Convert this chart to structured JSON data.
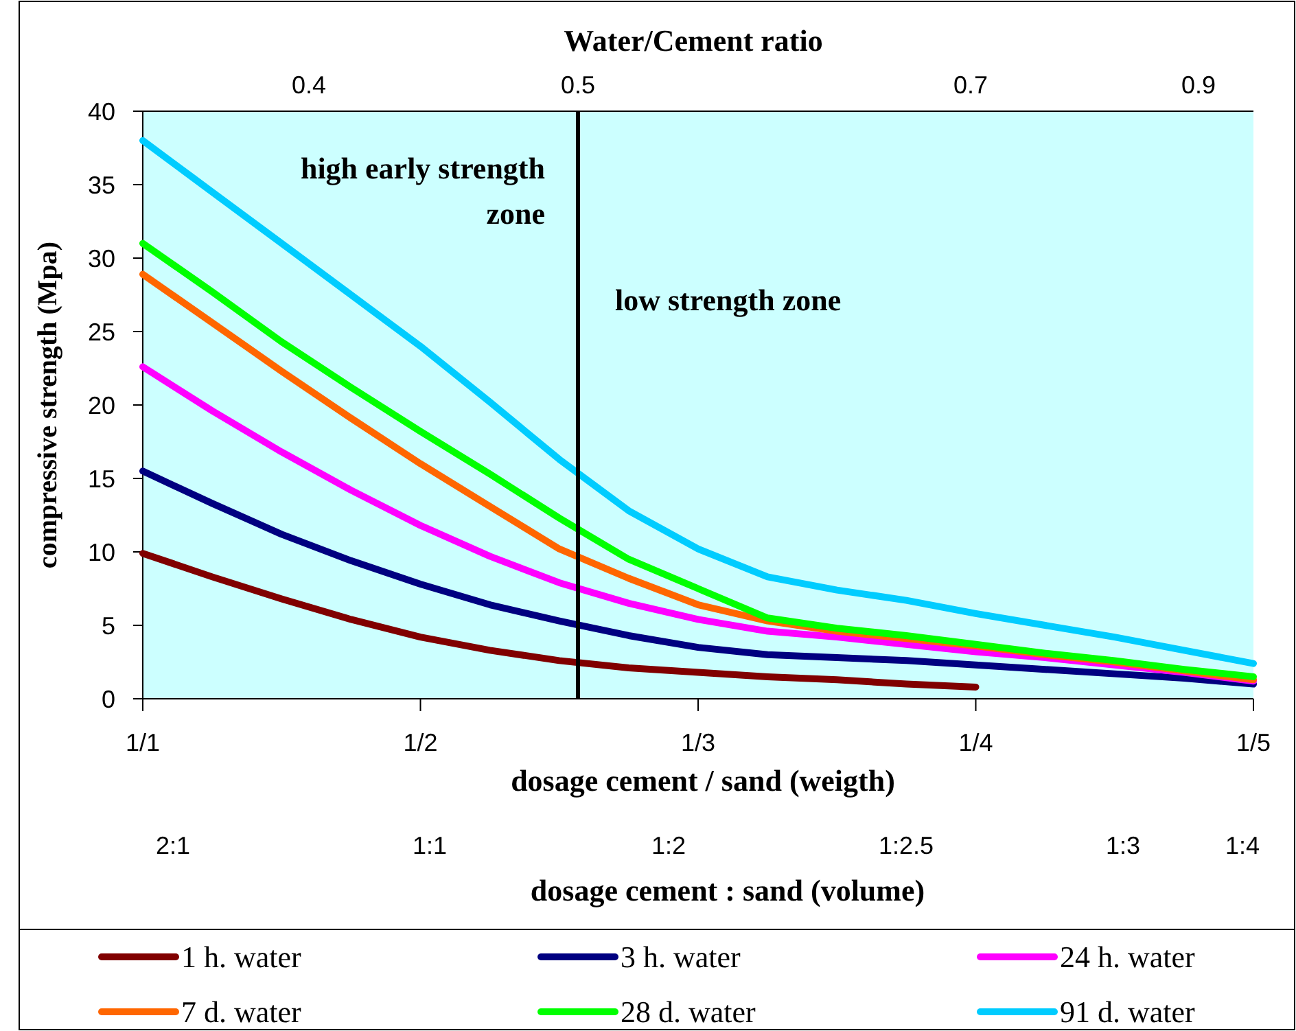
{
  "chart_data": {
    "type": "line",
    "xlabel": "dosage cement / sand (weigth)",
    "ylabel": "compressive strength (Mpa)",
    "x2label": "Water/Cement ratio",
    "categories": [
      "1/1",
      null,
      null,
      null,
      "1/2",
      null,
      null,
      null,
      "1/3",
      null,
      null,
      null,
      "1/4",
      null,
      null,
      null,
      "1/5"
    ],
    "series": [
      {
        "name": "1 h. water",
        "color": "#800000",
        "values": [
          9.9,
          8.3,
          6.8,
          5.4,
          4.2,
          3.3,
          2.6,
          2.1,
          1.8,
          1.5,
          1.3,
          1.0,
          0.8,
          null,
          null,
          null,
          null
        ]
      },
      {
        "name": "3 h. water",
        "color": "#000080",
        "values": [
          15.5,
          13.3,
          11.2,
          9.4,
          7.8,
          6.4,
          5.3,
          4.3,
          3.5,
          3.0,
          2.8,
          2.6,
          2.3,
          2.0,
          1.7,
          1.4,
          1.0
        ]
      },
      {
        "name": "24 h. water",
        "color": "#ff00ff",
        "values": [
          22.6,
          19.6,
          16.8,
          14.2,
          11.8,
          9.7,
          7.9,
          6.5,
          5.4,
          4.6,
          4.2,
          3.7,
          3.2,
          2.8,
          2.3,
          1.8,
          1.2
        ]
      },
      {
        "name": "7 d. water",
        "color": "#ff6600",
        "values": [
          28.9,
          25.6,
          22.3,
          19.1,
          16,
          13.1,
          10.2,
          8.2,
          6.4,
          5.3,
          4.6,
          4.1,
          3.6,
          3.0,
          2.5,
          1.9,
          1.3
        ]
      },
      {
        "name": "28 d. water",
        "color": "#00ff00",
        "values": [
          31,
          27.7,
          24.3,
          21.2,
          18.2,
          15.3,
          12.3,
          9.5,
          7.5,
          5.5,
          4.8,
          4.3,
          3.7,
          3.1,
          2.6,
          2.0,
          1.5
        ]
      },
      {
        "name": "91 d. water",
        "color": "#00ccff",
        "values": [
          38,
          34.5,
          31,
          27.5,
          24,
          20.2,
          16.3,
          12.8,
          10.2,
          8.3,
          7.4,
          6.7,
          5.8,
          5.0,
          4.2,
          3.3,
          2.4
        ]
      }
    ],
    "ylim": [
      0,
      40
    ],
    "yticks": [
      0,
      5,
      10,
      15,
      20,
      25,
      30,
      35,
      40
    ],
    "annotations": [
      "high early strength zone",
      "low strength zone",
      "0.4",
      "0.5",
      "0.7",
      "0.9",
      "dosage cement : sand (volume)",
      "2:1",
      "1:1",
      "1:2",
      "1:2.5",
      "1:3",
      "1:4"
    ],
    "grid": false,
    "legend": "bottom",
    "marker": "none",
    "line_style": "solid"
  }
}
